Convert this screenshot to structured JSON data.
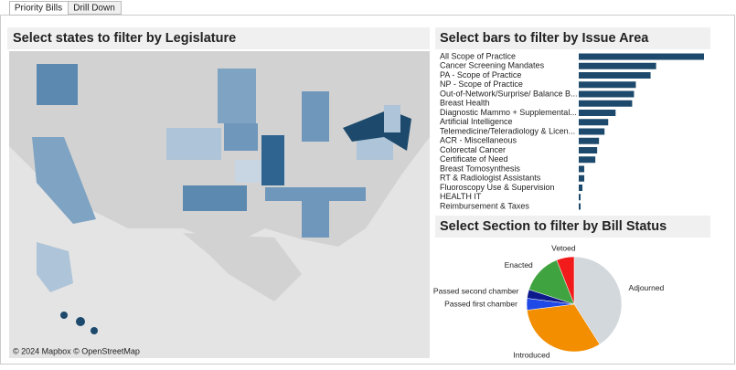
{
  "tabs": [
    "Priority Bills",
    "Drill Down"
  ],
  "map": {
    "title": "Select states to filter by Legislature",
    "attribution": "© 2024 Mapbox © OpenStreetMap"
  },
  "chart_data": [
    {
      "type": "bar",
      "title": "Select bars to filter by Issue Area",
      "categories": [
        "All Scope of Practice",
        "Cancer Screening Mandates",
        "PA - Scope of Practice",
        "NP - Scope of Practice",
        "Out-of-Network/Surprise/ Balance B...",
        "Breast Health",
        "Diagnostic Mammo + Supplemental...",
        "Artificial Intelligence",
        "Telemedicine/Teleradiology & Licen...",
        "ACR - Miscellaneous",
        "Colorectal Cancer",
        "Certificate of Need",
        "Breast Tomosynthesis",
        "RT & Radiologist Assistants",
        "Fluoroscopy Use & Supervision",
        "HEALTH IT",
        "Reimbursement & Taxes"
      ],
      "values": [
        68,
        42,
        39,
        31,
        30,
        29,
        20,
        16,
        14,
        11,
        10,
        9,
        3,
        3,
        2,
        1,
        1
      ],
      "color": "#1d4a6c"
    },
    {
      "type": "pie",
      "title": "Select Section to filter by Bill Status",
      "categories": [
        "Adjourned",
        "Introduced",
        "Passed first chamber",
        "Passed second chamber",
        "Enacted",
        "Vetoed"
      ],
      "values": [
        41,
        32,
        4,
        3,
        14,
        6
      ],
      "colors": [
        "#d3d8dc",
        "#f28e00",
        "#1f49e6",
        "#0d1a8c",
        "#3fa33f",
        "#f21b1b"
      ]
    }
  ]
}
